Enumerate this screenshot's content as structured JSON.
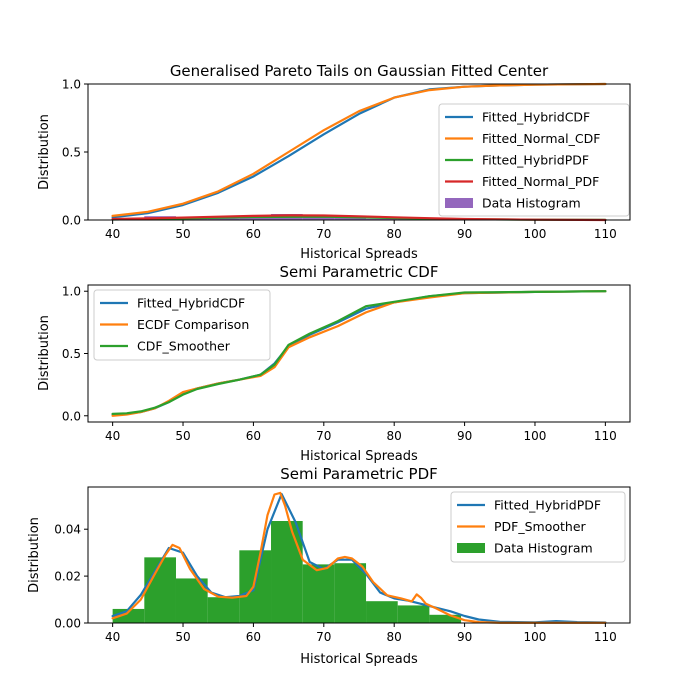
{
  "colors": {
    "blue": "#1f77b4",
    "orange": "#ff7f0e",
    "green": "#2ca02c",
    "red": "#d62728",
    "purple": "#9467bd"
  },
  "chart_data": [
    {
      "type": "line",
      "title": "Generalised Pareto Tails on Gaussian Fitted Center",
      "xlabel": "Historical Spreads",
      "ylabel": "Distribution",
      "xlim": [
        36.5,
        113.5
      ],
      "ylim": [
        0,
        1.0
      ],
      "xticks": [
        40,
        50,
        60,
        70,
        80,
        90,
        100,
        110
      ],
      "yticks": [
        0.0,
        0.5,
        1.0
      ],
      "ytick_labels": [
        "0.0",
        "0.5",
        "1.0"
      ],
      "legend_position": "lower-right",
      "legend": [
        {
          "label": "Fitted_HybridCDF",
          "color": "blue",
          "kind": "line"
        },
        {
          "label": "Fitted_Normal_CDF",
          "color": "orange",
          "kind": "line"
        },
        {
          "label": "Fitted_HybridPDF",
          "color": "green",
          "kind": "line"
        },
        {
          "label": "Fitted_Normal_PDF",
          "color": "red",
          "kind": "line"
        },
        {
          "label": "Data Histogram",
          "color": "purple",
          "kind": "patch"
        }
      ],
      "series": [
        {
          "name": "Fitted_HybridCDF",
          "color": "blue",
          "x": [
            40,
            45,
            50,
            55,
            60,
            65,
            70,
            75,
            80,
            85,
            90,
            95,
            100,
            105,
            110
          ],
          "y": [
            0.02,
            0.05,
            0.11,
            0.2,
            0.32,
            0.47,
            0.63,
            0.78,
            0.9,
            0.96,
            0.98,
            0.99,
            0.995,
            0.998,
            1.0
          ]
        },
        {
          "name": "Fitted_Normal_CDF",
          "color": "orange",
          "x": [
            40,
            45,
            50,
            55,
            60,
            65,
            70,
            75,
            80,
            85,
            90,
            95,
            100,
            105,
            110
          ],
          "y": [
            0.03,
            0.06,
            0.12,
            0.21,
            0.34,
            0.5,
            0.66,
            0.8,
            0.9,
            0.955,
            0.98,
            0.99,
            0.995,
            0.998,
            1.0
          ]
        },
        {
          "name": "Fitted_HybridPDF",
          "color": "green",
          "x": [
            40,
            50,
            60,
            70,
            80,
            90,
            100,
            110
          ],
          "y": [
            0.004,
            0.012,
            0.022,
            0.025,
            0.015,
            0.006,
            0.002,
            0.001
          ]
        },
        {
          "name": "Fitted_Normal_PDF",
          "color": "red",
          "x": [
            40,
            45,
            50,
            55,
            60,
            65,
            70,
            75,
            80,
            85,
            90,
            100,
            110
          ],
          "y": [
            0.007,
            0.012,
            0.018,
            0.024,
            0.03,
            0.034,
            0.033,
            0.027,
            0.02,
            0.013,
            0.007,
            0.002,
            0.0
          ]
        }
      ],
      "histogram": {
        "name": "Data Histogram",
        "color": "purple",
        "edges": [
          40,
          44.5,
          49,
          53.5,
          58,
          62.5,
          67,
          71.5,
          76,
          80.5,
          85,
          89.5
        ],
        "values": [
          0.006,
          0.028,
          0.019,
          0.011,
          0.031,
          0.044,
          0.026,
          0.025,
          0.009,
          0.008,
          0.003
        ]
      }
    },
    {
      "type": "line",
      "title": "Semi Parametric CDF",
      "xlabel": "Historical Spreads",
      "ylabel": "Distribution",
      "xlim": [
        36.5,
        113.5
      ],
      "ylim": [
        -0.05,
        1.05
      ],
      "xticks": [
        40,
        50,
        60,
        70,
        80,
        90,
        100,
        110
      ],
      "yticks": [
        0.0,
        0.5,
        1.0
      ],
      "ytick_labels": [
        "0.0",
        "0.5",
        "1.0"
      ],
      "legend_position": "upper-left",
      "legend": [
        {
          "label": "Fitted_HybridCDF",
          "color": "blue",
          "kind": "line"
        },
        {
          "label": "ECDF Comparison",
          "color": "orange",
          "kind": "line"
        },
        {
          "label": "CDF_Smoother",
          "color": "green",
          "kind": "line"
        }
      ],
      "series": [
        {
          "name": "Fitted_HybridCDF",
          "color": "blue",
          "x": [
            40,
            42,
            44,
            46,
            48,
            50,
            52,
            55,
            58,
            61,
            63,
            65,
            68,
            72,
            76,
            80,
            85,
            90,
            100,
            110
          ],
          "y": [
            0.01,
            0.015,
            0.03,
            0.06,
            0.11,
            0.18,
            0.22,
            0.26,
            0.29,
            0.33,
            0.42,
            0.56,
            0.65,
            0.75,
            0.86,
            0.91,
            0.96,
            0.985,
            0.995,
            1.0
          ]
        },
        {
          "name": "ECDF Comparison",
          "color": "orange",
          "x": [
            40,
            42,
            44,
            46,
            48,
            50,
            52,
            55,
            58,
            61,
            63,
            65,
            68,
            72,
            76,
            80,
            85,
            90,
            100,
            110
          ],
          "y": [
            0.0,
            0.01,
            0.03,
            0.06,
            0.12,
            0.19,
            0.22,
            0.26,
            0.29,
            0.32,
            0.39,
            0.55,
            0.63,
            0.72,
            0.83,
            0.91,
            0.95,
            0.985,
            0.995,
            1.0
          ]
        },
        {
          "name": "CDF_Smoother",
          "color": "green",
          "x": [
            40,
            42,
            44,
            46,
            48,
            50,
            52,
            55,
            58,
            61,
            63,
            65,
            68,
            72,
            76,
            80,
            85,
            90,
            100,
            110
          ],
          "y": [
            0.015,
            0.02,
            0.035,
            0.065,
            0.11,
            0.17,
            0.215,
            0.255,
            0.29,
            0.33,
            0.41,
            0.57,
            0.66,
            0.76,
            0.88,
            0.915,
            0.96,
            0.99,
            0.995,
            1.0
          ]
        }
      ]
    },
    {
      "type": "line",
      "title": "Semi Parametric PDF",
      "xlabel": "Historical Spreads",
      "ylabel": "Distribution",
      "xlim": [
        36.5,
        113.5
      ],
      "ylim": [
        0,
        0.058
      ],
      "xticks": [
        40,
        50,
        60,
        70,
        80,
        90,
        100,
        110
      ],
      "yticks": [
        0.0,
        0.02,
        0.04
      ],
      "ytick_labels": [
        "0.00",
        "0.02",
        "0.04"
      ],
      "legend_position": "upper-right",
      "legend": [
        {
          "label": "Fitted_HybridPDF",
          "color": "blue",
          "kind": "line"
        },
        {
          "label": "PDF_Smoother",
          "color": "orange",
          "kind": "line"
        },
        {
          "label": "Data Histogram",
          "color": "green",
          "kind": "patch"
        }
      ],
      "series": [
        {
          "name": "Fitted_HybridPDF",
          "color": "blue",
          "x": [
            40,
            42,
            44,
            46,
            48,
            50,
            52,
            54,
            56,
            58,
            60,
            62,
            64,
            66,
            68,
            70,
            72,
            74,
            76,
            78,
            80,
            82,
            84,
            86,
            88,
            90,
            92,
            95,
            100,
            103,
            106,
            110
          ],
          "y": [
            0.003,
            0.005,
            0.012,
            0.022,
            0.032,
            0.03,
            0.02,
            0.013,
            0.011,
            0.0115,
            0.014,
            0.04,
            0.055,
            0.043,
            0.026,
            0.023,
            0.027,
            0.027,
            0.021,
            0.013,
            0.0105,
            0.0095,
            0.008,
            0.0065,
            0.005,
            0.003,
            0.0015,
            0.0005,
            0.0003,
            0.0008,
            0.0004,
            0.0002
          ]
        },
        {
          "name": "PDF_Smoother",
          "color": "orange",
          "x": [
            40,
            42,
            44,
            46,
            47.5,
            48.5,
            49.5,
            51,
            53,
            55,
            57,
            59,
            60,
            61,
            62,
            63,
            63.8,
            64.5,
            65.5,
            67,
            69,
            70.5,
            72,
            73,
            74,
            75.5,
            77,
            79,
            81,
            82.5,
            83.2,
            83.8,
            84.5,
            86,
            88,
            90,
            92,
            95,
            100,
            105,
            110
          ],
          "y": [
            0.002,
            0.004,
            0.01,
            0.021,
            0.029,
            0.0333,
            0.032,
            0.023,
            0.0145,
            0.0112,
            0.0108,
            0.0115,
            0.0155,
            0.03,
            0.046,
            0.0548,
            0.0555,
            0.05,
            0.039,
            0.027,
            0.0225,
            0.0235,
            0.0275,
            0.0282,
            0.0275,
            0.024,
            0.0175,
            0.0118,
            0.0105,
            0.0092,
            0.0122,
            0.0108,
            0.0082,
            0.0062,
            0.0032,
            0.0012,
            0.0004,
            0.0001,
            0.0001,
            0.0001,
            0.0001
          ]
        }
      ],
      "histogram": {
        "name": "Data Histogram",
        "color": "green",
        "edges": [
          40,
          44.5,
          49,
          53.5,
          58,
          62.5,
          67,
          71.5,
          76,
          80.5,
          85,
          89.5
        ],
        "values": [
          0.006,
          0.028,
          0.019,
          0.011,
          0.031,
          0.0435,
          0.025,
          0.0255,
          0.0093,
          0.0075,
          0.0035
        ]
      }
    }
  ]
}
